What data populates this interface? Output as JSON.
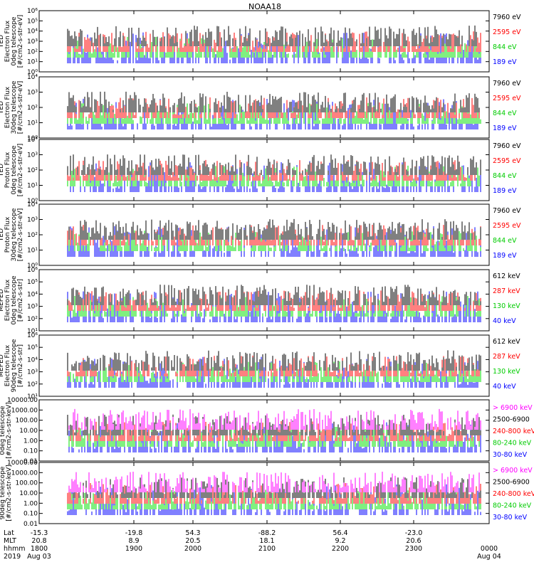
{
  "title": "NOAA18",
  "colors": {
    "black": "#000000",
    "red": "#ff0000",
    "green": "#00e000",
    "blue": "#0000ff",
    "magenta": "#ff00ff",
    "greenLabel": "#00cc00"
  },
  "chart_data": [
    {
      "type": "line",
      "panel": "TED electron flux 0-deg telescope",
      "ylabel_lines": [
        "TED",
        "Electron Flux",
        "0deg telescope",
        "[#/cm2-s-str-eV]"
      ],
      "yscale": "log",
      "ylim": [
        1,
        1000000
      ],
      "ytick_labels": [
        "10⁰",
        "10¹",
        "10²",
        "10³",
        "10⁴",
        "10⁵",
        "10⁶"
      ],
      "legend": [
        {
          "label": "7960 eV",
          "color": "black"
        },
        {
          "label": "2595 eV",
          "color": "red"
        },
        {
          "label": "844 eV",
          "color": "green"
        },
        {
          "label": "189 eV",
          "color": "blue"
        }
      ]
    },
    {
      "type": "line",
      "panel": "TED electron flux 30-deg telescope",
      "ylabel_lines": [
        "TED",
        "Electron Flux",
        "30deg telescope",
        "[#/cm2-s-str-eV]"
      ],
      "yscale": "log",
      "ylim": [
        1,
        10000
      ],
      "ytick_labels": [
        "10⁰",
        "10¹",
        "10²",
        "10³",
        "10⁴"
      ],
      "legend": [
        {
          "label": "7960 eV",
          "color": "black"
        },
        {
          "label": "2595 eV",
          "color": "red"
        },
        {
          "label": "844 eV",
          "color": "green"
        },
        {
          "label": "189 eV",
          "color": "blue"
        }
      ]
    },
    {
      "type": "line",
      "panel": "TED proton flux 0-deg telescope",
      "ylabel_lines": [
        "TED",
        "Proton Flux",
        "0deg telescope",
        "[#/cm2-s-str-eV]"
      ],
      "yscale": "log",
      "ylim": [
        1,
        10000
      ],
      "ytick_labels": [
        "10⁰",
        "10¹",
        "10²",
        "10³",
        "10⁴"
      ],
      "legend": [
        {
          "label": "7960 eV",
          "color": "black"
        },
        {
          "label": "2595 eV",
          "color": "red"
        },
        {
          "label": "844 eV",
          "color": "green"
        },
        {
          "label": "189 eV",
          "color": "blue"
        }
      ]
    },
    {
      "type": "line",
      "panel": "TED proton flux 30-deg telescope",
      "ylabel_lines": [
        "TED",
        "Proton Flux",
        "30deg telescope",
        "[#/cm2-s-str-eV]"
      ],
      "yscale": "log",
      "ylim": [
        1,
        10000
      ],
      "ytick_labels": [
        "10⁰",
        "10¹",
        "10²",
        "10³",
        "10⁴"
      ],
      "legend": [
        {
          "label": "7960 eV",
          "color": "black"
        },
        {
          "label": "2595 eV",
          "color": "red"
        },
        {
          "label": "844 eV",
          "color": "green"
        },
        {
          "label": "189 eV",
          "color": "blue"
        }
      ]
    },
    {
      "type": "line",
      "panel": "MEPED electron flux 0-deg telescope",
      "ylabel_lines": [
        "MEPED",
        "Electron Flux",
        "0deg telescope",
        "[#/cm2-s-str]"
      ],
      "yscale": "log",
      "ylim": [
        10,
        1000000
      ],
      "ytick_labels": [
        "10¹",
        "10²",
        "10³",
        "10⁴",
        "10⁵",
        "10⁶"
      ],
      "legend": [
        {
          "label": "612 keV",
          "color": "black"
        },
        {
          "label": "287 keV",
          "color": "red"
        },
        {
          "label": "130 keV",
          "color": "green"
        },
        {
          "label": "40 keV",
          "color": "blue"
        }
      ]
    },
    {
      "type": "line",
      "panel": "MEPED electron flux 90-deg telescope",
      "ylabel_lines": [
        "MEPED",
        "Electron Flux",
        "90deg telescope",
        "[#/cm2-s-str]"
      ],
      "yscale": "log",
      "ylim": [
        10,
        1000000
      ],
      "ytick_labels": [
        "10¹",
        "10²",
        "10³",
        "10⁴",
        "10⁵",
        "10⁶"
      ],
      "legend": [
        {
          "label": "612 keV",
          "color": "black"
        },
        {
          "label": "287 keV",
          "color": "red"
        },
        {
          "label": "130 keV",
          "color": "green"
        },
        {
          "label": "40 keV",
          "color": "blue"
        }
      ]
    },
    {
      "type": "line",
      "panel": "MEPED proton flux 0-deg telescope",
      "ylabel_lines": [
        "MEPED",
        "Proton Flux",
        "0deg telescope",
        "[#/cm2-s-str-keV]"
      ],
      "yscale": "log",
      "ylim": [
        0.01,
        10000
      ],
      "ytick_labels": [
        "0.01",
        "0.10",
        "1.00",
        "10.00",
        "100.00",
        "1000.00",
        "10000.00"
      ],
      "legend": [
        {
          "label": "> 6900 keV",
          "color": "magenta"
        },
        {
          "label": "2500-6900",
          "color": "black"
        },
        {
          "label": "240-800 keV",
          "color": "red"
        },
        {
          "label": "80-240 keV",
          "color": "green"
        },
        {
          "label": "30-80 keV",
          "color": "blue"
        }
      ]
    },
    {
      "type": "line",
      "panel": "MEPED proton flux 90-deg telescope",
      "ylabel_lines": [
        "MEPED",
        "Proton Flux",
        "90deg telescope",
        "[#/cm2-s-str-keV]"
      ],
      "yscale": "log",
      "ylim": [
        0.01,
        10000
      ],
      "ytick_labels": [
        "0.01",
        "0.10",
        "1.00",
        "10.00",
        "100.00",
        "1000.00",
        "10000.00"
      ],
      "legend": [
        {
          "label": "> 6900 keV",
          "color": "magenta"
        },
        {
          "label": "2500-6900",
          "color": "black"
        },
        {
          "label": "240-800 keV",
          "color": "red"
        },
        {
          "label": "80-240 keV",
          "color": "green"
        },
        {
          "label": "30-80 keV",
          "color": "blue"
        }
      ]
    }
  ],
  "x_axis": {
    "row_labels": [
      "Lat",
      "MLT",
      "hhmm",
      "2019"
    ],
    "ticks": [
      {
        "lat": "-15.3",
        "mlt": "20.8",
        "hhmm": "1800",
        "date": "Aug 03"
      },
      {
        "lat": "-19.8",
        "mlt": "8.9",
        "hhmm": "1900",
        "date": ""
      },
      {
        "lat": "54.3",
        "mlt": "20.5",
        "hhmm": "2000",
        "date": ""
      },
      {
        "lat": "-88.2",
        "mlt": "18.1",
        "hhmm": "2100",
        "date": ""
      },
      {
        "lat": "56.4",
        "mlt": "9.2",
        "hhmm": "2200",
        "date": ""
      },
      {
        "lat": "-23.0",
        "mlt": "20.6",
        "hhmm": "2300",
        "date": ""
      },
      {
        "lat": "",
        "mlt": "",
        "hhmm": "0000",
        "date": "Aug 04"
      }
    ]
  }
}
